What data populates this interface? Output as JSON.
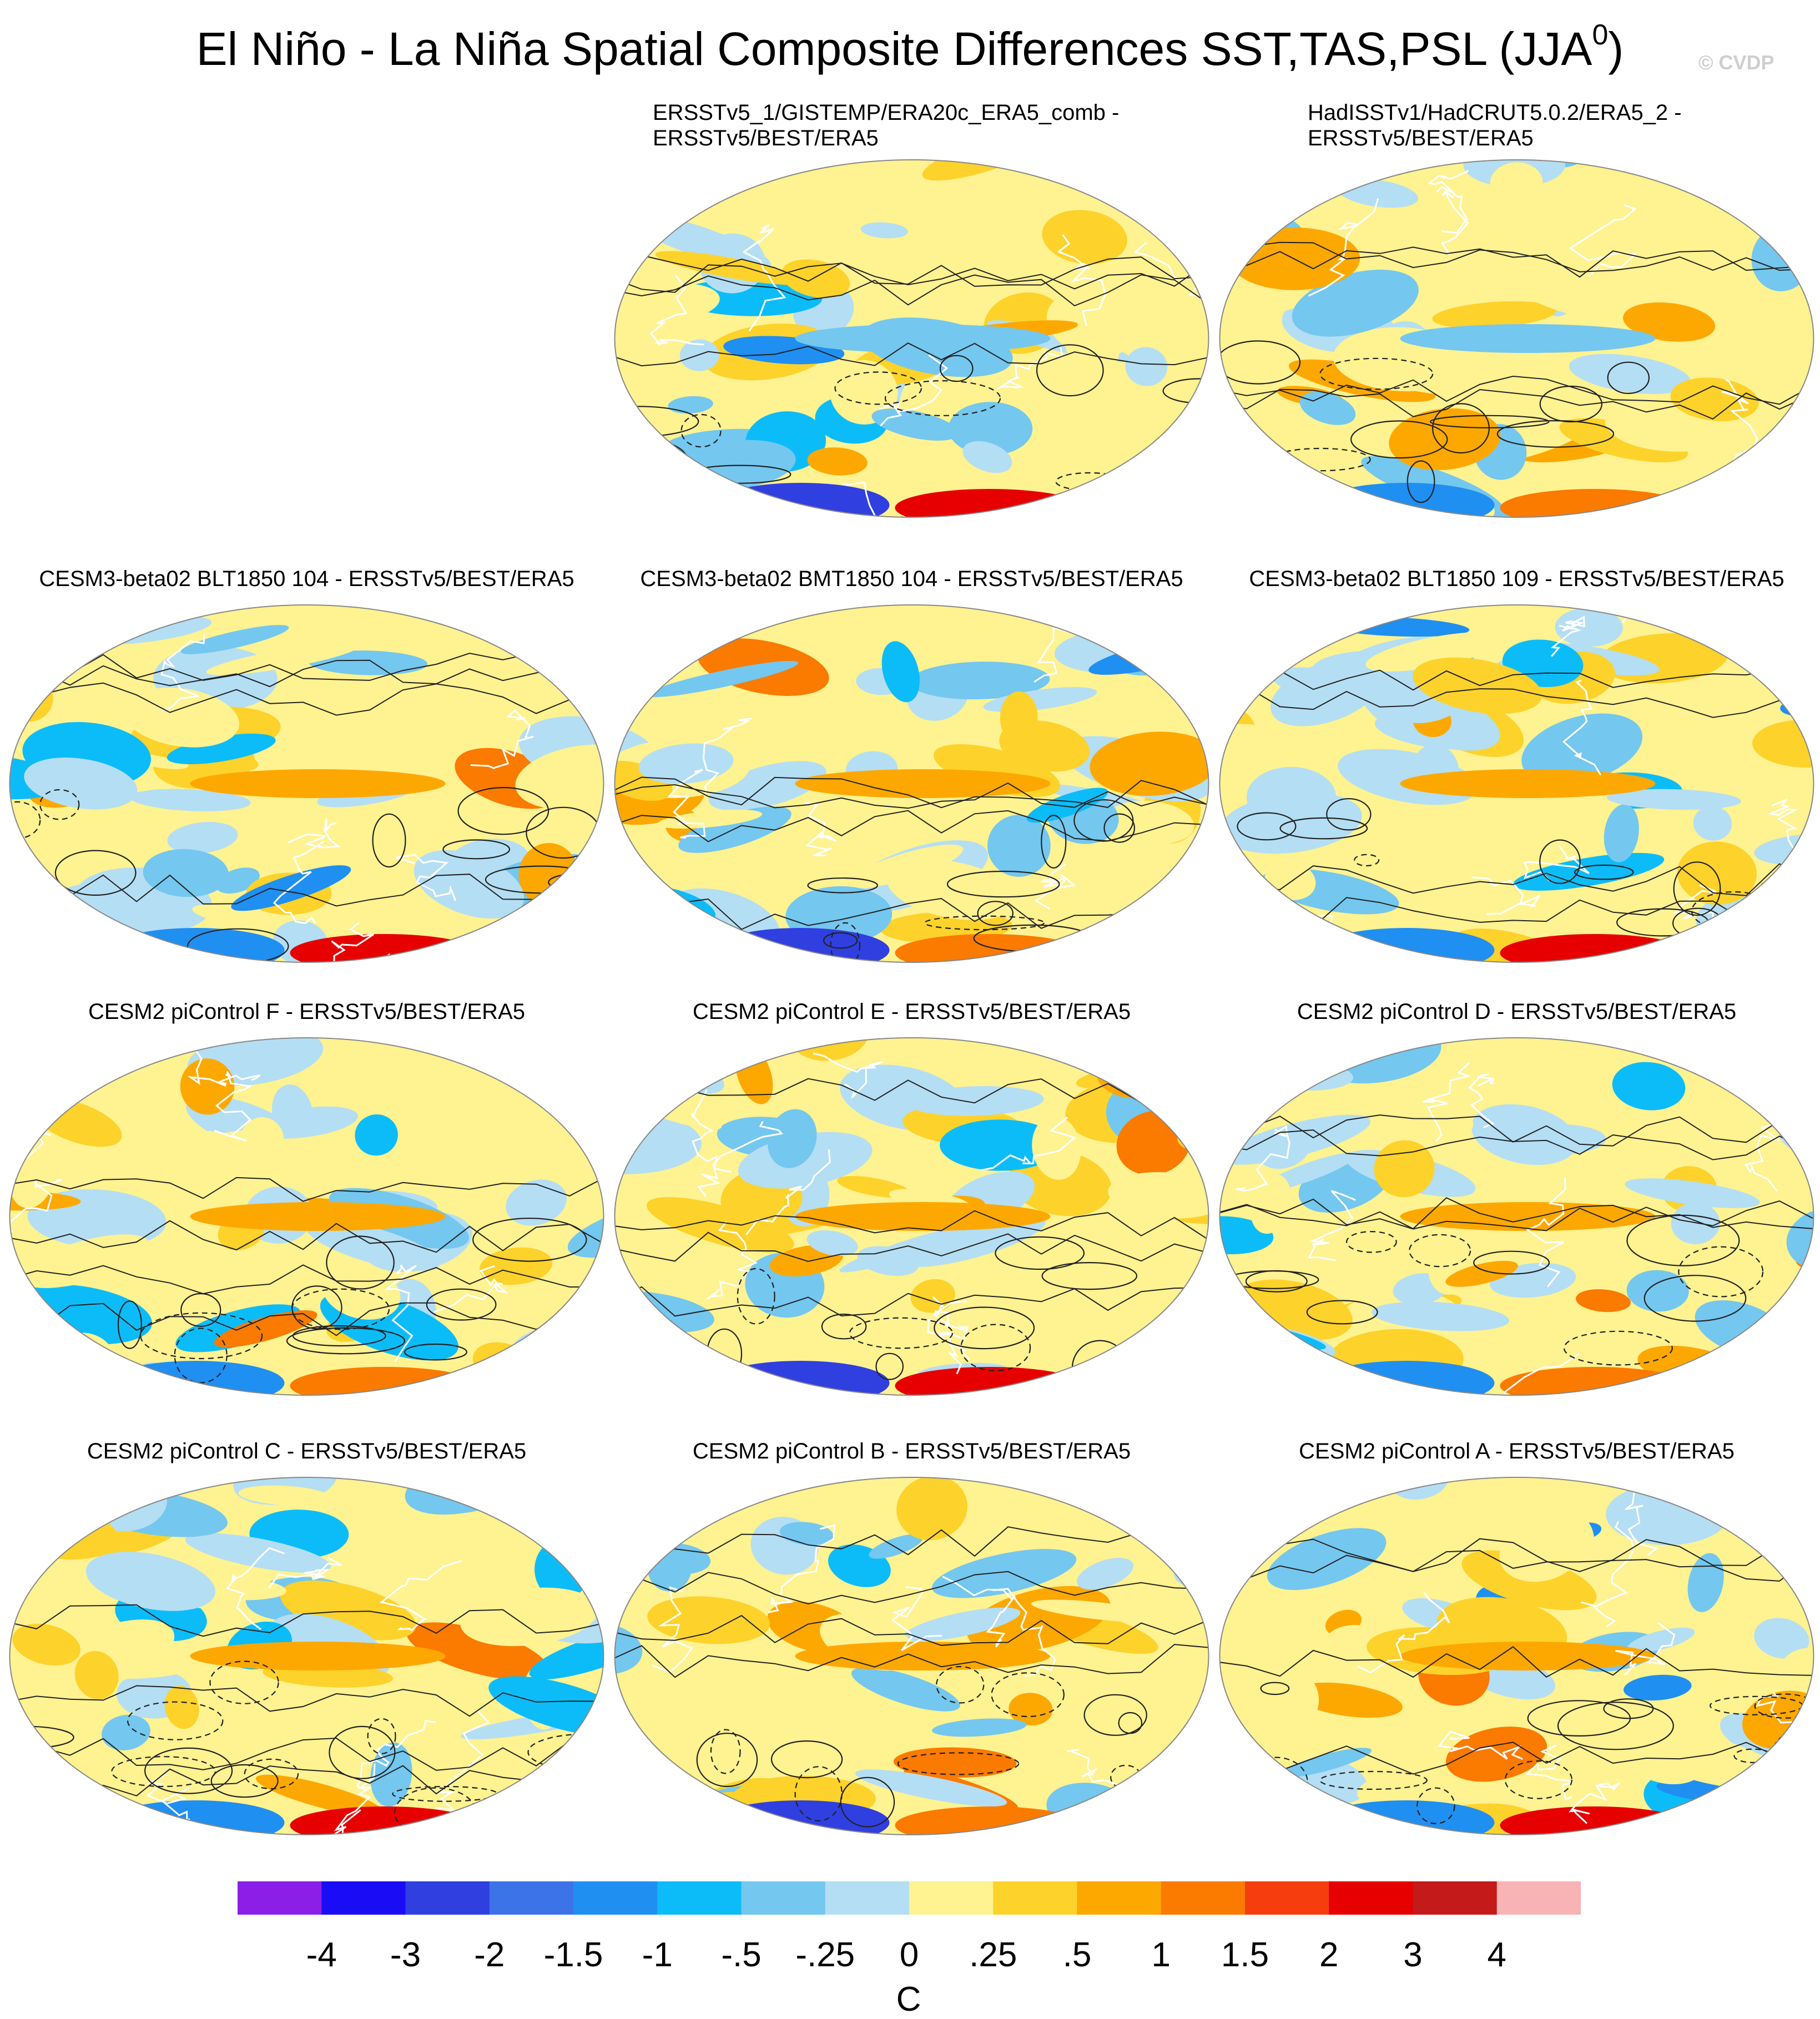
{
  "title": "El Niño - La Niña Spatial Composite Differences SST,TAS,PSL (JJA",
  "title_superscript": "0",
  "title_close": ")",
  "copyright": "© CVDP",
  "panels": [
    {
      "id": "p1",
      "title": "ERSSTv5_1/GISTEMP/ERA20c_ERA5_comb -\nERSSTv5/BEST/ERA5"
    },
    {
      "id": "p2",
      "title": "HadISSTv1/HadCRUT5.0.2/ERA5_2 -\nERSSTv5/BEST/ERA5"
    },
    {
      "id": "p3",
      "title": "CESM3-beta02 BLT1850 104 - ERSSTv5/BEST/ERA5"
    },
    {
      "id": "p4",
      "title": "CESM3-beta02 BMT1850 104 - ERSSTv5/BEST/ERA5"
    },
    {
      "id": "p5",
      "title": "CESM3-beta02 BLT1850 109 - ERSSTv5/BEST/ERA5"
    },
    {
      "id": "p6",
      "title": "CESM2 piControl F - ERSSTv5/BEST/ERA5"
    },
    {
      "id": "p7",
      "title": "CESM2 piControl E - ERSSTv5/BEST/ERA5"
    },
    {
      "id": "p8",
      "title": "CESM2 piControl D - ERSSTv5/BEST/ERA5"
    },
    {
      "id": "p9",
      "title": "CESM2 piControl C - ERSSTv5/BEST/ERA5"
    },
    {
      "id": "p10",
      "title": "CESM2 piControl B - ERSSTv5/BEST/ERA5"
    },
    {
      "id": "p11",
      "title": "CESM2 piControl A - ERSSTv5/BEST/ERA5"
    }
  ],
  "colorbar": {
    "units": "C",
    "labels": [
      "-4",
      "-3",
      "-2",
      "-1.5",
      "-1",
      "-.5",
      "-.25",
      "0",
      ".25",
      ".5",
      "1",
      "1.5",
      "2",
      "3",
      "4"
    ],
    "colors": [
      "#8b1fe8",
      "#1a0df5",
      "#2f3fe0",
      "#3d73e8",
      "#1f8ff2",
      "#0cbcf9",
      "#74c7ef",
      "#b4def3",
      "#fff291",
      "#fdd22a",
      "#fda800",
      "#fb7a00",
      "#f53d0e",
      "#e60000",
      "#c41a1a",
      "#f8b3b5"
    ]
  },
  "chart_data": {
    "type": "heatmap",
    "projection": "Robinson-like global maps, 11 panels",
    "fill_variable": "SST/TAS composite difference",
    "contour_variable": "PSL composite difference (solid positive, dashed negative)",
    "color_levels": [
      -4,
      -3,
      -2,
      -1.5,
      -1,
      -0.5,
      -0.25,
      0,
      0.25,
      0.5,
      1,
      1.5,
      2,
      3,
      4
    ],
    "units": "C",
    "panels": [
      "ERSSTv5_1/GISTEMP/ERA20c_ERA5_comb - ERSSTv5/BEST/ERA5",
      "HadISSTv1/HadCRUT5.0.2/ERA5_2 - ERSSTv5/BEST/ERA5",
      "CESM3-beta02 BLT1850 104 - ERSSTv5/BEST/ERA5",
      "CESM3-beta02 BMT1850 104 - ERSSTv5/BEST/ERA5",
      "CESM3-beta02 BLT1850 109 - ERSSTv5/BEST/ERA5",
      "CESM2 piControl F - ERSSTv5/BEST/ERA5",
      "CESM2 piControl E - ERSSTv5/BEST/ERA5",
      "CESM2 piControl D - ERSSTv5/BEST/ERA5",
      "CESM2 piControl C - ERSSTv5/BEST/ERA5",
      "CESM2 piControl B - ERSSTv5/BEST/ERA5",
      "CESM2 piControl A - ERSSTv5/BEST/ERA5"
    ]
  }
}
